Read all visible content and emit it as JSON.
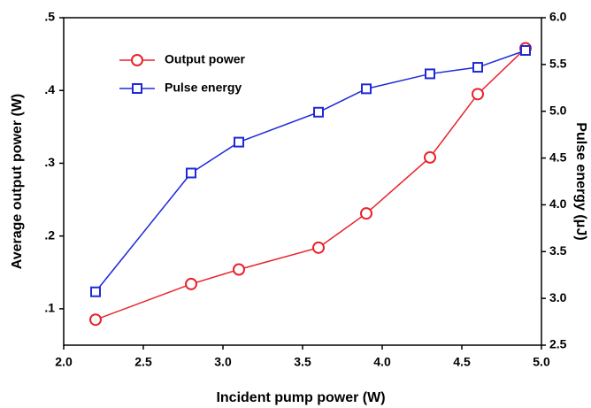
{
  "chart_data": {
    "type": "line",
    "xlabel": "Incident pump power (W)",
    "ylabel": "Average output power (W)",
    "y2label": "Pulse energy (μJ)",
    "x": [
      2.2,
      2.8,
      3.1,
      3.6,
      3.9,
      4.3,
      4.6,
      4.9
    ],
    "series": [
      {
        "name": "Output power",
        "color": "#e8222a",
        "marker": "circle",
        "values": [
          0.085,
          0.134,
          0.154,
          0.184,
          0.231,
          0.308,
          0.395,
          0.458
        ]
      },
      {
        "name": "Pulse energy",
        "color": "#1f2ad6",
        "marker": "square",
        "axis": "y2",
        "values": [
          3.07,
          4.34,
          4.67,
          4.99,
          5.24,
          5.4,
          5.47,
          5.65
        ]
      }
    ],
    "xlim": [
      2.0,
      5.0
    ],
    "xticks": [
      {
        "value": 2,
        "label": "2.0"
      },
      2.5,
      {
        "value": 3,
        "label": "3.0"
      },
      3.5,
      {
        "value": 4,
        "label": "4.0"
      },
      4.5,
      {
        "value": 5,
        "label": "5.0"
      }
    ],
    "ylim": [
      0.05,
      0.5
    ],
    "yticks": [
      {
        "value": 0.1,
        "label": ".1"
      },
      {
        "value": 0.2,
        "label": ".2"
      },
      {
        "value": 0.3,
        "label": ".3"
      },
      {
        "value": 0.4,
        "label": ".4"
      },
      {
        "value": 0.5,
        "label": ".5"
      }
    ],
    "y2lim": [
      2.5,
      6.0
    ],
    "y2ticks": [
      2.5,
      {
        "value": 3,
        "label": "3.0"
      },
      3.5,
      {
        "value": 4,
        "label": "4.0"
      },
      4.5,
      {
        "value": 5,
        "label": "5.0"
      },
      5.5,
      {
        "value": 6,
        "label": "6.0"
      }
    ],
    "legend": "upper left",
    "grid": false
  }
}
